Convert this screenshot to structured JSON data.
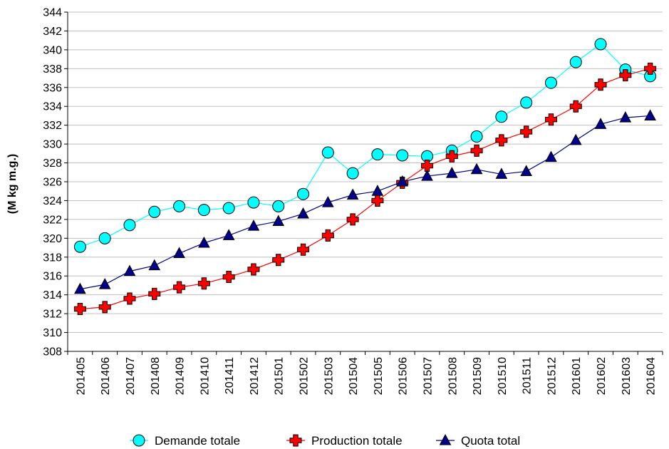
{
  "chart_data": {
    "type": "line",
    "title": "",
    "xlabel": "",
    "ylabel": "(M kg m.g.)",
    "ylim": [
      308,
      344
    ],
    "ytick_step": 2,
    "grid": true,
    "legend_position": "bottom",
    "categories": [
      "201405",
      "201406",
      "201407",
      "201408",
      "201409",
      "201410",
      "201411",
      "201412",
      "201501",
      "201502",
      "201503",
      "201504",
      "201505",
      "201506",
      "201507",
      "201508",
      "201509",
      "201510",
      "201511",
      "201512",
      "201601",
      "201602",
      "201603",
      "201604"
    ],
    "series": [
      {
        "name": "Demande totale",
        "marker": "circle",
        "color": "#00FFFF",
        "values": [
          319.1,
          320.0,
          321.4,
          322.8,
          323.4,
          323.0,
          323.2,
          323.8,
          323.4,
          324.7,
          329.1,
          326.9,
          328.9,
          328.8,
          328.7,
          329.3,
          330.8,
          332.9,
          334.4,
          336.5,
          338.7,
          340.6,
          337.9,
          337.2
        ]
      },
      {
        "name": "Production totale",
        "marker": "cross",
        "color": "#FF0000",
        "values": [
          312.5,
          312.7,
          313.6,
          314.1,
          314.8,
          315.2,
          315.9,
          316.7,
          317.7,
          318.8,
          320.3,
          322.0,
          324.0,
          325.9,
          327.7,
          328.7,
          329.3,
          330.4,
          331.3,
          332.6,
          334.0,
          336.3,
          337.3,
          338.0
        ]
      },
      {
        "name": "Quota total",
        "marker": "triangle",
        "color": "#00008B",
        "values": [
          314.6,
          315.1,
          316.5,
          317.1,
          318.4,
          319.5,
          320.3,
          321.3,
          321.8,
          322.6,
          323.8,
          324.6,
          325.0,
          326.0,
          326.6,
          326.9,
          327.3,
          326.8,
          327.1,
          328.6,
          330.4,
          332.1,
          332.8,
          333.0
        ]
      }
    ]
  }
}
